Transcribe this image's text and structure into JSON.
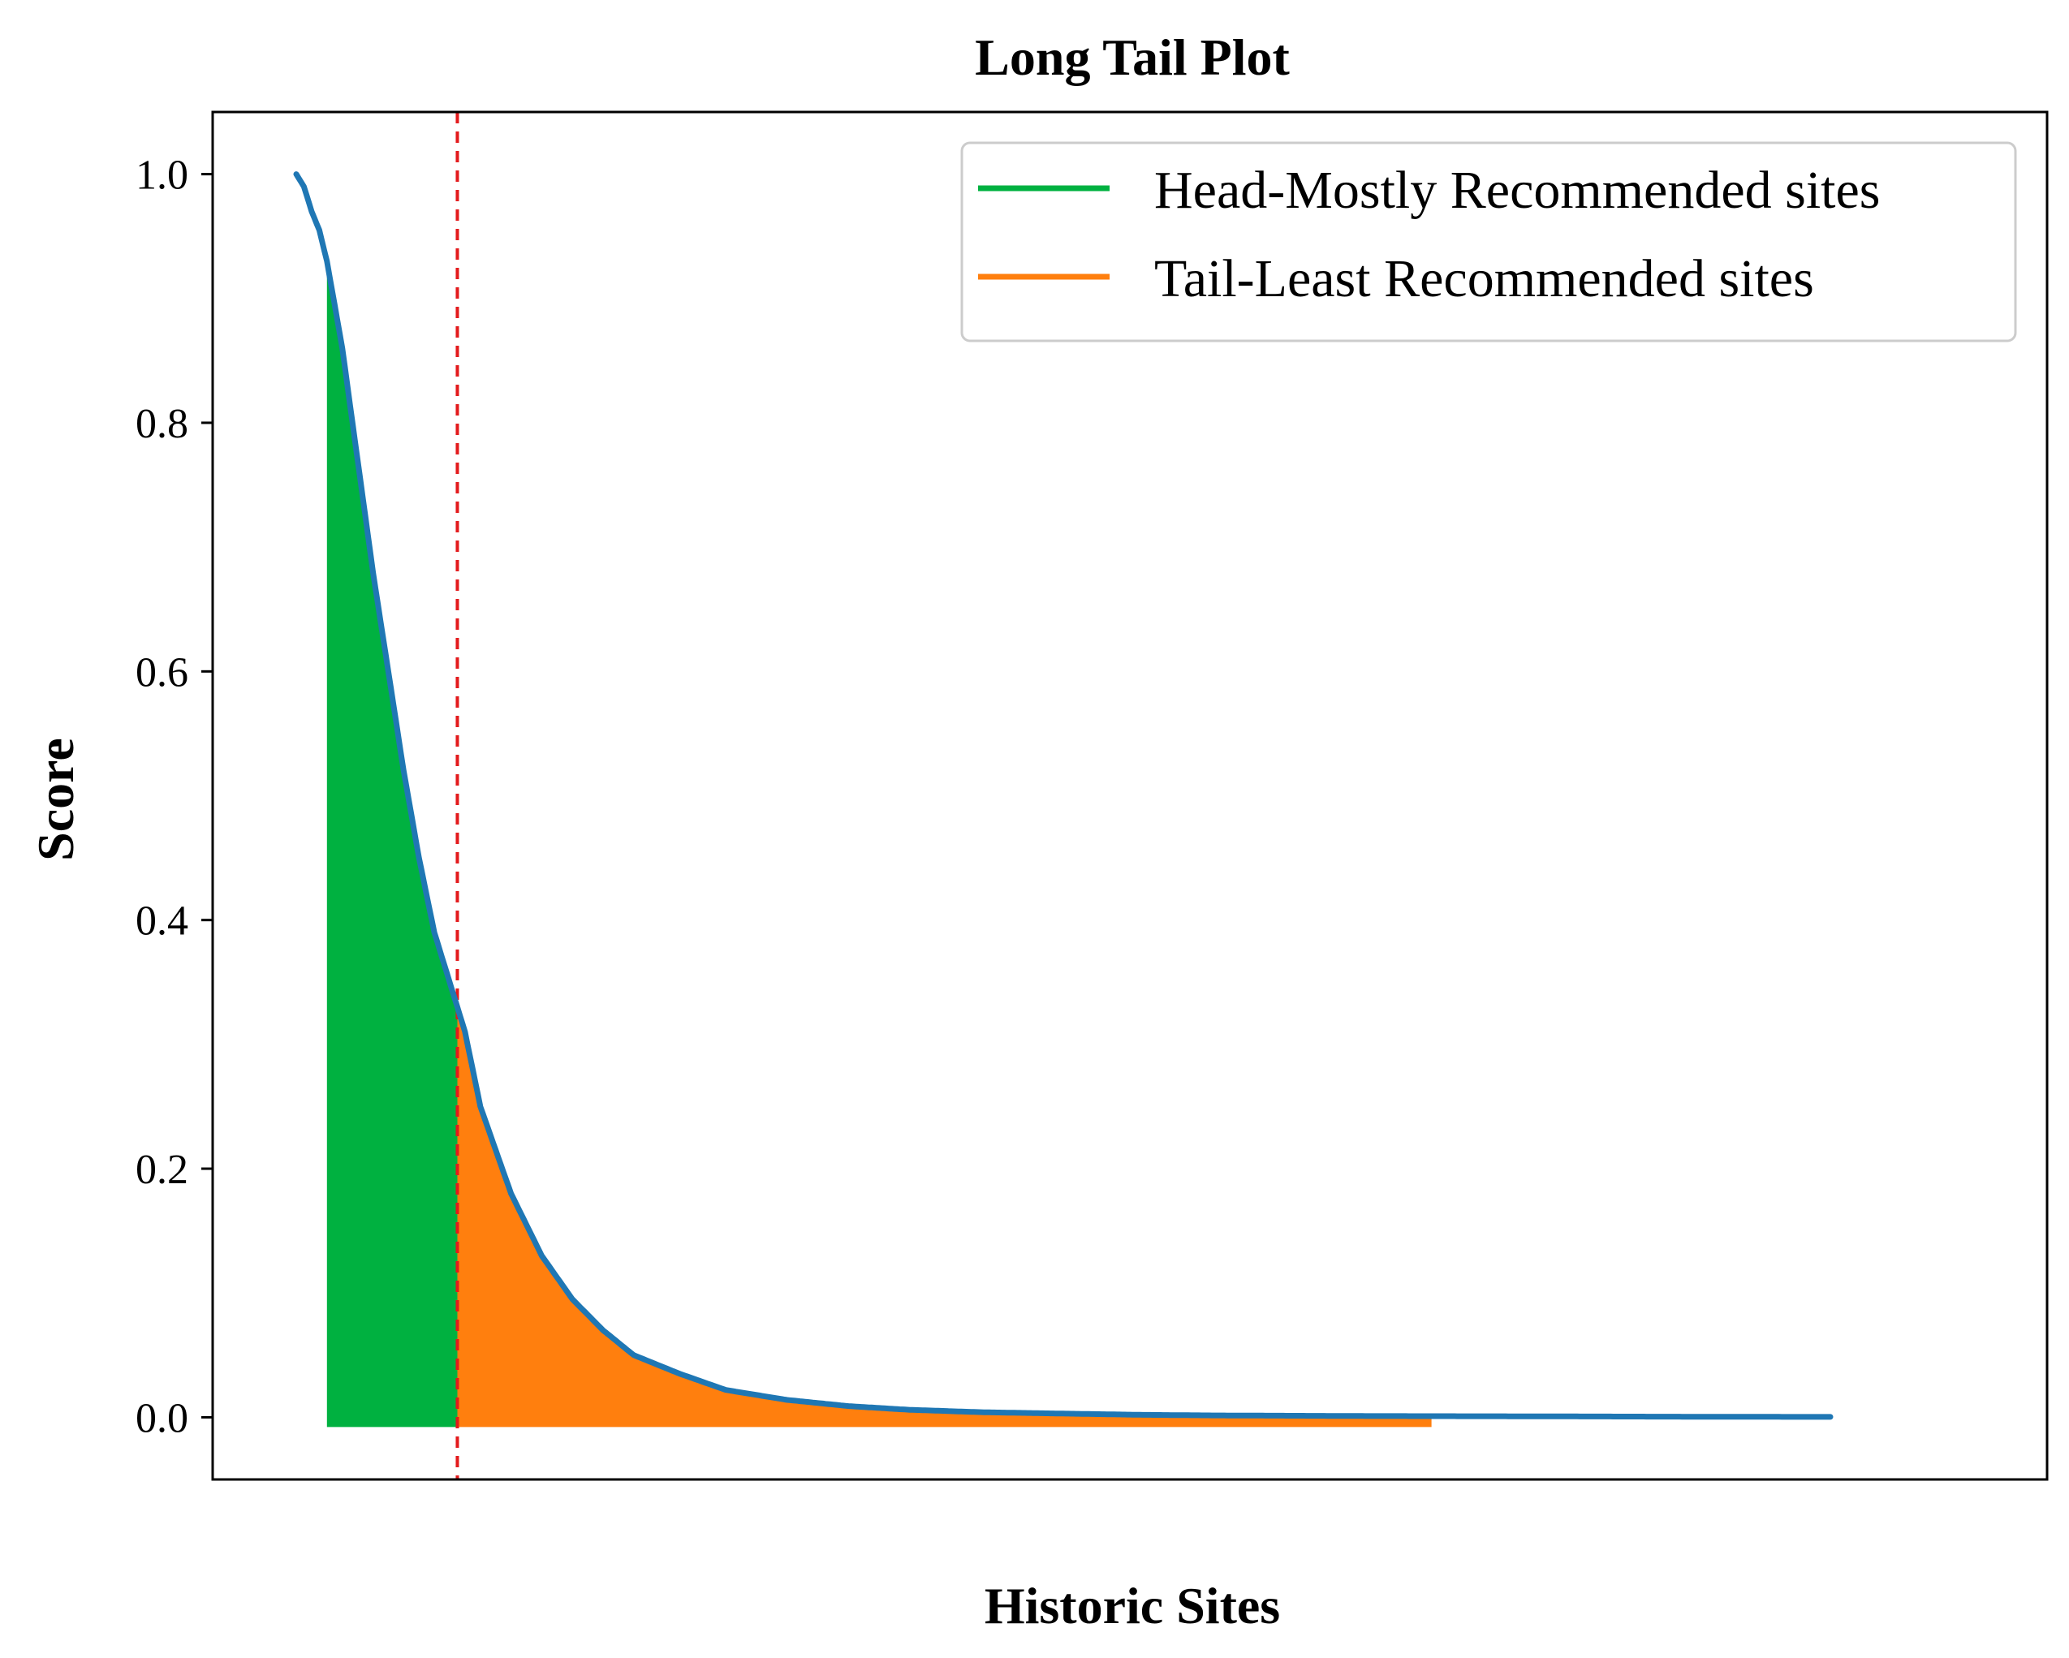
{
  "chart_data": {
    "type": "area",
    "title": "Long Tail Plot",
    "xlabel": "Historic Sites",
    "ylabel": "Score",
    "x_ticks_visible": false,
    "xlim": [
      0,
      100
    ],
    "ylim": [
      -0.05,
      1.05
    ],
    "yticks": [
      "0.0",
      "0.2",
      "0.4",
      "0.6",
      "0.8",
      "1.0"
    ],
    "grid": false,
    "legend_position": "top-right",
    "cutoff_x": 10.5,
    "cutoff_style": "dashed",
    "series": [
      {
        "name": "Head-Mostly Recommended sites",
        "color": "#00b140",
        "region": "head",
        "x_range": [
          2,
          10.5
        ]
      },
      {
        "name": "Tail-Least Recommended sites",
        "color": "#ff7f0e",
        "region": "tail",
        "x_range": [
          10.5,
          74
        ]
      }
    ],
    "curve": {
      "color": "#1f77b4",
      "points": [
        [
          0,
          1.0
        ],
        [
          0.5,
          0.99
        ],
        [
          1,
          0.97
        ],
        [
          1.5,
          0.955
        ],
        [
          2,
          0.93
        ],
        [
          3,
          0.86
        ],
        [
          4,
          0.77
        ],
        [
          5,
          0.68
        ],
        [
          6,
          0.6
        ],
        [
          7,
          0.52
        ],
        [
          8,
          0.45
        ],
        [
          9,
          0.39
        ],
        [
          10,
          0.35
        ],
        [
          11,
          0.31
        ],
        [
          12,
          0.25
        ],
        [
          14,
          0.18
        ],
        [
          16,
          0.13
        ],
        [
          18,
          0.095
        ],
        [
          20,
          0.07
        ],
        [
          22,
          0.05
        ],
        [
          25,
          0.035
        ],
        [
          28,
          0.022
        ],
        [
          32,
          0.014
        ],
        [
          36,
          0.009
        ],
        [
          40,
          0.006
        ],
        [
          45,
          0.004
        ],
        [
          50,
          0.003
        ],
        [
          55,
          0.002
        ],
        [
          60,
          0.0015
        ],
        [
          70,
          0.001
        ],
        [
          80,
          0.0008
        ],
        [
          90,
          0.0005
        ],
        [
          100,
          0.0003
        ]
      ]
    }
  },
  "colors": {
    "threshold": "#e31a1c",
    "axes": "#000000",
    "legend_border": "#cccccc"
  }
}
